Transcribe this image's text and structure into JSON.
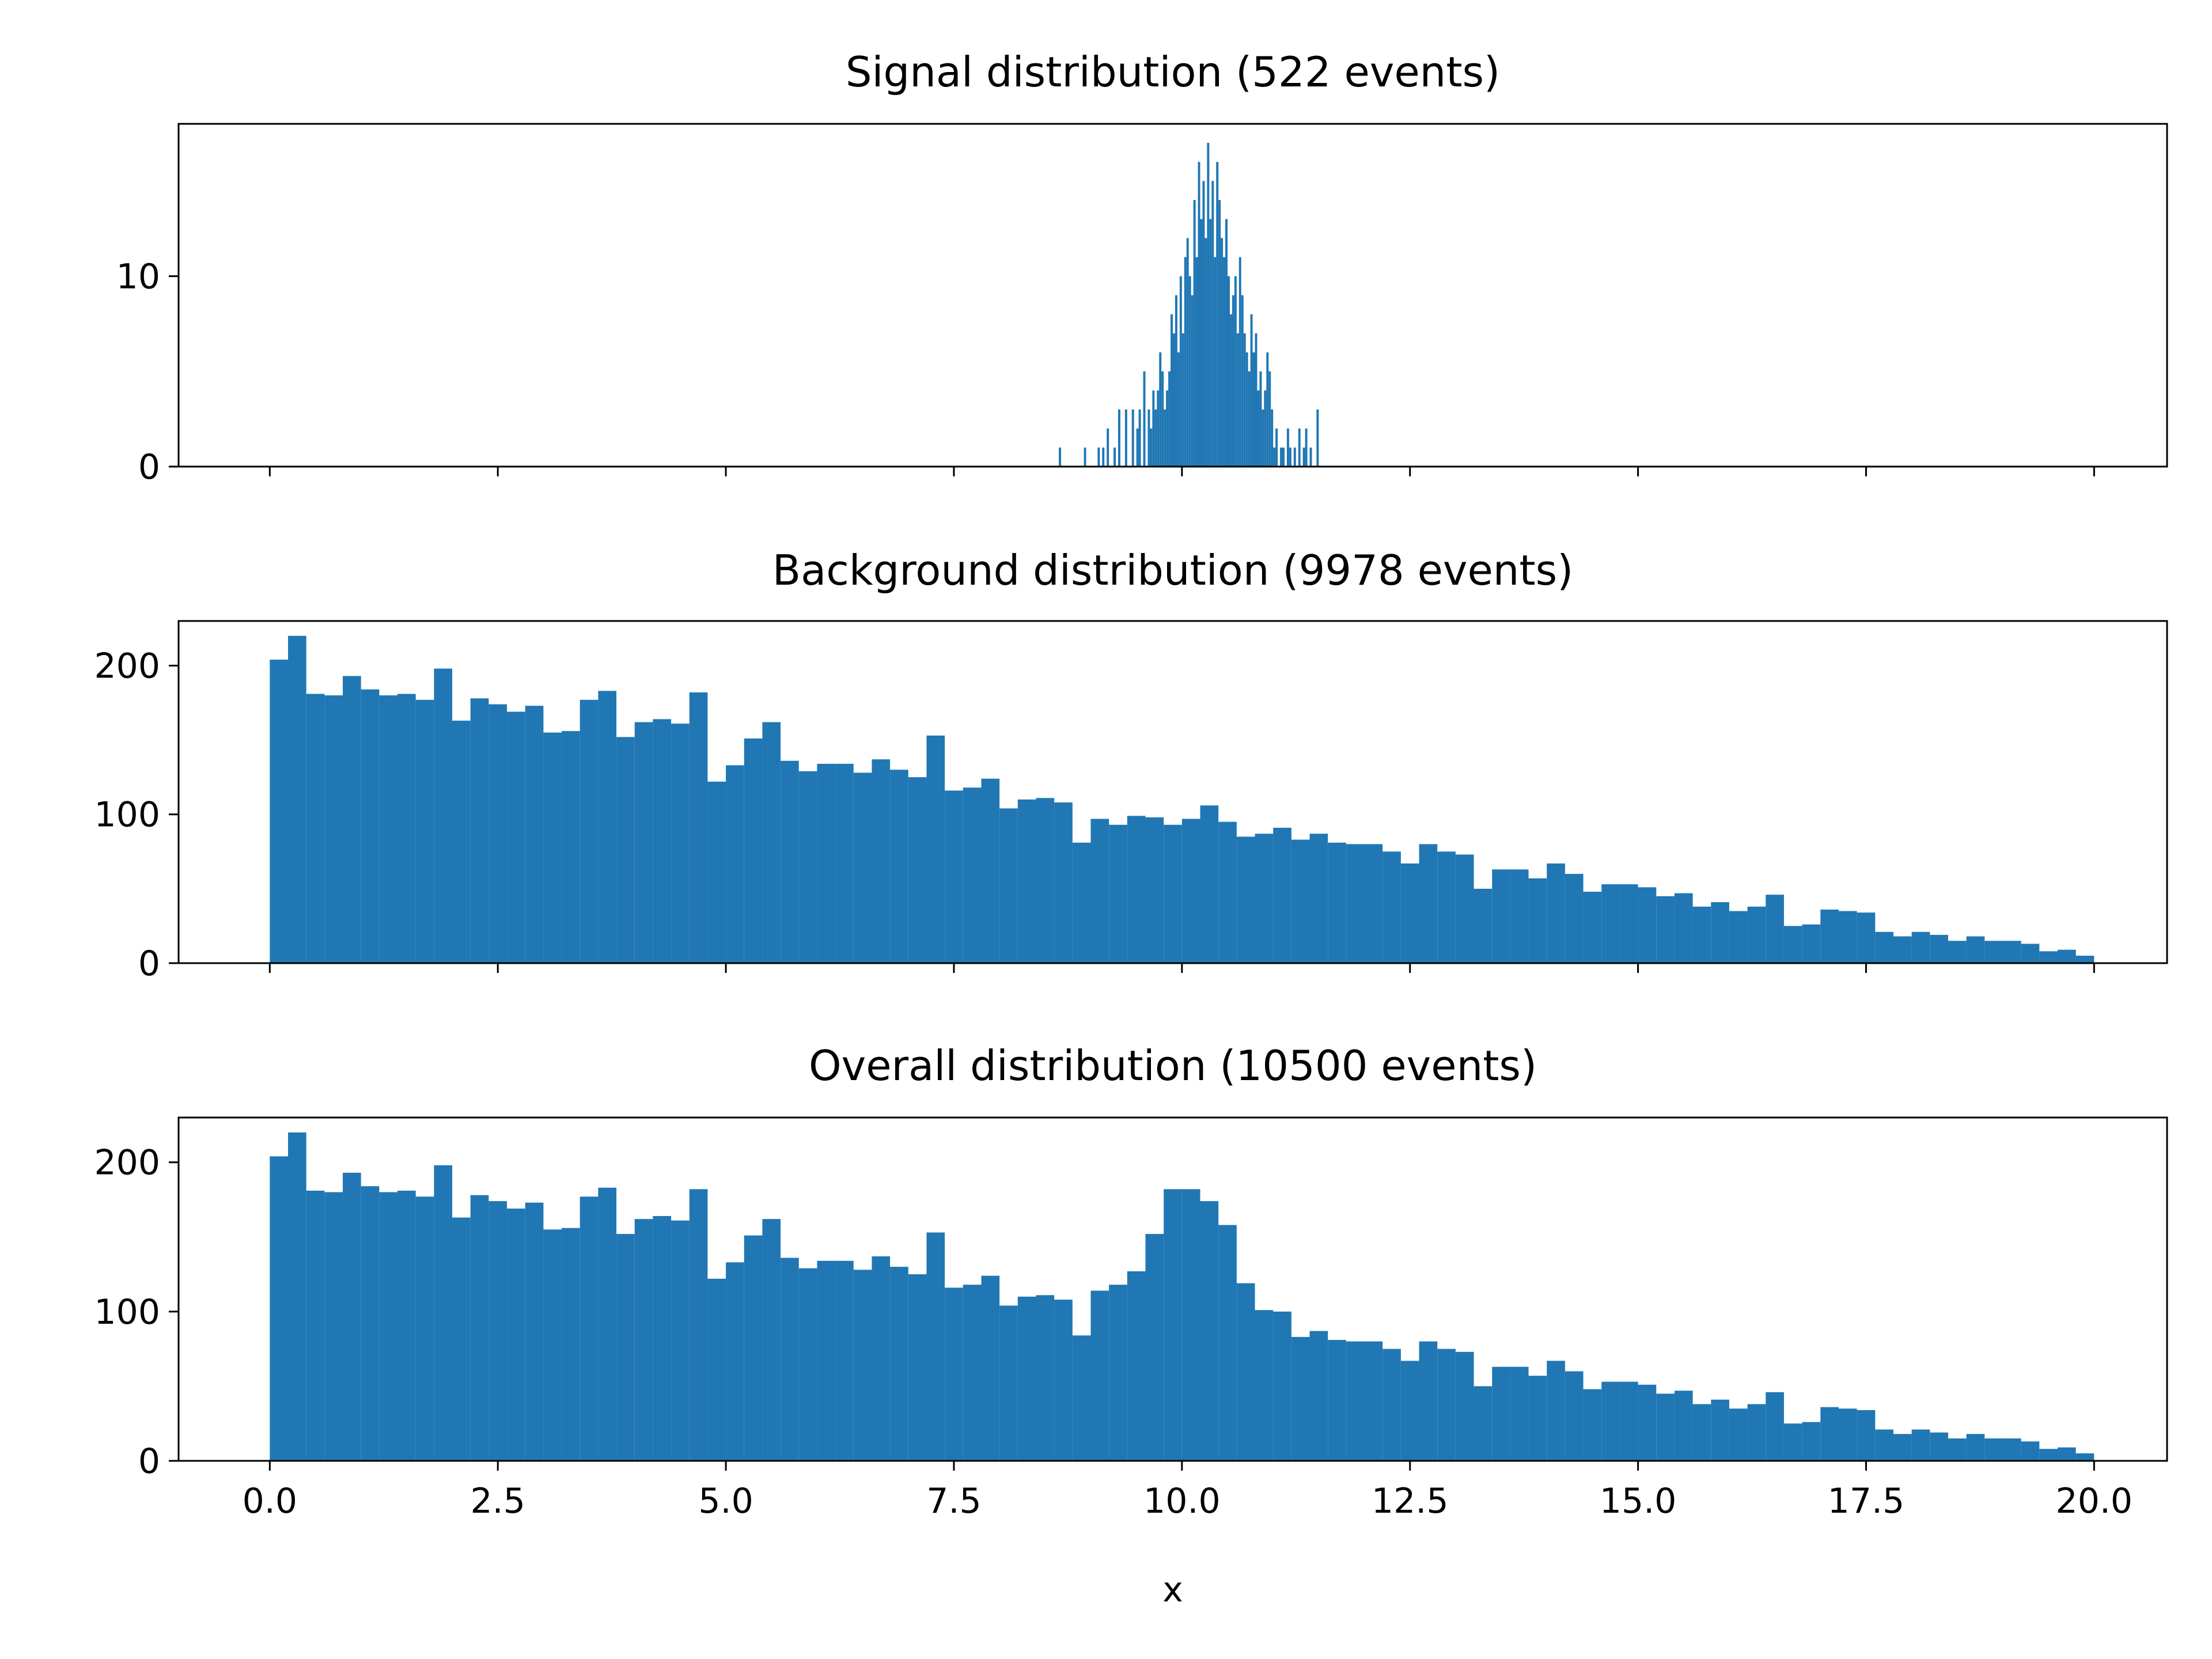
{
  "figure": {
    "xlabel": "x",
    "bar_color": "#2077b4"
  },
  "chart_data": [
    {
      "type": "bar",
      "title": "Signal distribution (522  events)",
      "xlabel": "",
      "ylabel": "",
      "xlim": [
        -1.0,
        20.8
      ],
      "ylim": [
        0,
        18
      ],
      "x_ticks": [
        0.0,
        2.5,
        5.0,
        7.5,
        10.0,
        12.5,
        15.0,
        17.5,
        20.0
      ],
      "y_ticks": [
        0,
        10
      ],
      "show_x_tick_labels": false,
      "bin_start": 8.65,
      "bin_width": 0.025,
      "values": [
        1,
        0,
        0,
        0,
        0,
        0,
        0,
        0,
        0,
        0,
        0,
        1,
        0,
        0,
        0,
        0,
        0,
        1,
        0,
        1,
        0,
        2,
        0,
        0,
        1,
        0,
        3,
        0,
        0,
        3,
        0,
        0,
        3,
        0,
        2,
        3,
        0,
        5,
        0,
        3,
        2,
        4,
        3,
        4,
        6,
        5,
        3,
        4,
        5,
        8,
        7,
        9,
        6,
        10,
        7,
        11,
        12,
        10,
        9,
        14,
        11,
        16,
        13,
        15,
        12,
        17,
        13,
        15,
        11,
        16,
        14,
        12,
        11,
        13,
        10,
        8,
        9,
        10,
        7,
        11,
        9,
        7,
        6,
        5,
        8,
        6,
        7,
        4,
        5,
        3,
        4,
        6,
        5,
        3,
        1,
        2,
        0,
        1,
        1,
        0,
        2,
        1,
        0,
        1,
        0,
        2,
        0,
        1,
        2,
        0,
        1,
        0,
        0,
        3
      ]
    },
    {
      "type": "bar",
      "title": "Background distribution (9978  events)",
      "xlabel": "",
      "ylabel": "",
      "xlim": [
        -1.0,
        20.8
      ],
      "ylim": [
        0,
        230
      ],
      "x_ticks": [
        0.0,
        2.5,
        5.0,
        7.5,
        10.0,
        12.5,
        15.0,
        17.5,
        20.0
      ],
      "y_ticks": [
        0,
        100,
        200
      ],
      "show_x_tick_labels": false,
      "bin_start": 0.0,
      "bin_width": 0.2,
      "values": [
        204,
        220,
        181,
        180,
        193,
        184,
        180,
        181,
        177,
        198,
        163,
        178,
        174,
        169,
        173,
        155,
        156,
        177,
        183,
        152,
        162,
        164,
        161,
        182,
        122,
        133,
        151,
        162,
        136,
        129,
        134,
        134,
        128,
        137,
        130,
        125,
        153,
        116,
        118,
        124,
        104,
        110,
        111,
        108,
        81,
        97,
        93,
        99,
        98,
        93,
        97,
        106,
        95,
        85,
        87,
        91,
        83,
        87,
        81,
        80,
        80,
        75,
        67,
        80,
        75,
        73,
        50,
        63,
        63,
        57,
        67,
        60,
        48,
        53,
        53,
        51,
        45,
        47,
        38,
        41,
        35,
        38,
        46,
        25,
        26,
        36,
        35,
        34,
        21,
        18,
        21,
        19,
        15,
        18,
        15,
        15,
        13,
        8,
        9,
        5
      ]
    },
    {
      "type": "bar",
      "title": "Overall distribution (10500  events)",
      "xlabel": "x",
      "ylabel": "",
      "xlim": [
        -1.0,
        20.8
      ],
      "ylim": [
        0,
        230
      ],
      "x_ticks": [
        0.0,
        2.5,
        5.0,
        7.5,
        10.0,
        12.5,
        15.0,
        17.5,
        20.0
      ],
      "x_tick_labels": [
        "0.0",
        "2.5",
        "5.0",
        "7.5",
        "10.0",
        "12.5",
        "15.0",
        "17.5",
        "20.0"
      ],
      "y_ticks": [
        0,
        100,
        200
      ],
      "show_x_tick_labels": true,
      "bin_start": 0.0,
      "bin_width": 0.2,
      "values": [
        204,
        220,
        181,
        180,
        193,
        184,
        180,
        181,
        177,
        198,
        163,
        178,
        174,
        169,
        173,
        155,
        156,
        177,
        183,
        152,
        162,
        164,
        161,
        182,
        122,
        133,
        151,
        162,
        136,
        129,
        134,
        134,
        128,
        137,
        130,
        125,
        153,
        116,
        118,
        124,
        104,
        110,
        111,
        108,
        84,
        114,
        118,
        127,
        152,
        182,
        182,
        174,
        158,
        119,
        101,
        100,
        83,
        87,
        81,
        80,
        80,
        75,
        67,
        80,
        75,
        73,
        50,
        63,
        63,
        57,
        67,
        60,
        48,
        53,
        53,
        51,
        45,
        47,
        38,
        41,
        35,
        38,
        46,
        25,
        26,
        36,
        35,
        34,
        21,
        18,
        21,
        19,
        15,
        18,
        15,
        15,
        13,
        8,
        9,
        5
      ]
    }
  ]
}
